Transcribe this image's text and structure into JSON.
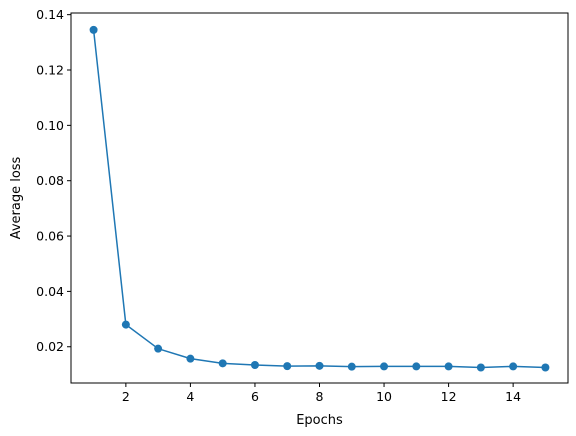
{
  "chart_data": {
    "type": "line",
    "xlabel": "Epochs",
    "ylabel": "Average loss",
    "x": [
      1,
      2,
      3,
      4,
      5,
      6,
      7,
      8,
      9,
      10,
      11,
      12,
      13,
      14,
      15
    ],
    "series": [
      {
        "values": [
          0.1345,
          0.028,
          0.0193,
          0.0157,
          0.014,
          0.0134,
          0.013,
          0.0131,
          0.0128,
          0.0129,
          0.0129,
          0.0129,
          0.0125,
          0.0129,
          0.0125
        ],
        "color": "#1f77b4",
        "marker": "circle"
      }
    ],
    "xlim": [
      0.3,
      15.7
    ],
    "ylim": [
      0.0069,
      0.1406
    ],
    "xticks": [
      2,
      4,
      6,
      8,
      10,
      12,
      14
    ],
    "yticks": [
      0.02,
      0.04,
      0.06,
      0.08,
      0.1,
      0.12,
      0.14
    ],
    "xtick_labels": [
      "2",
      "4",
      "6",
      "8",
      "10",
      "12",
      "14"
    ],
    "ytick_labels": [
      "0.02",
      "0.04",
      "0.06",
      "0.08",
      "0.10",
      "0.12",
      "0.14"
    ],
    "grid": false,
    "legend": false
  }
}
